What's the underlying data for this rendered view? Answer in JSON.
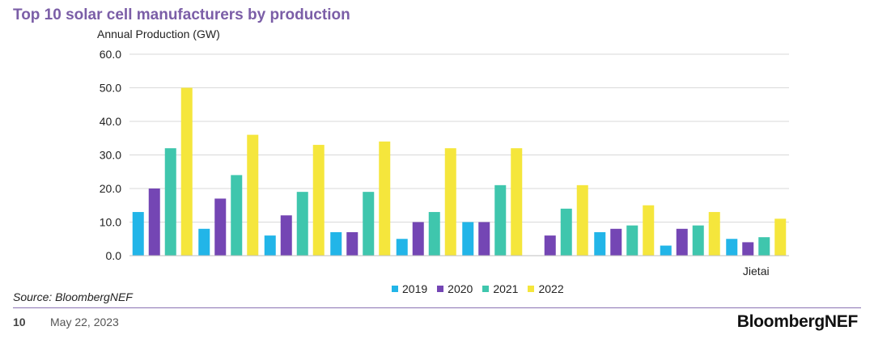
{
  "title": "Top 10 solar cell manufacturers by production",
  "footer": {
    "source": "Source: BloombergNEF",
    "page_number": "10",
    "date": "May 22, 2023",
    "brand": "BloombergNEF"
  },
  "colors": {
    "title": "#7b5ea7",
    "s2019": "#22b5e8",
    "s2020": "#7446b4",
    "s2021": "#3fc6ad",
    "s2022": "#f5e63c",
    "grid": "#d9d9d9"
  },
  "chart_data": {
    "type": "bar",
    "title": "Top 10 solar cell manufacturers by production",
    "ylabel": "Annual Production (GW)",
    "xlabel": "",
    "ylim": [
      0,
      60
    ],
    "yticks": [
      "0.0",
      "10.0",
      "20.0",
      "30.0",
      "40.0",
      "50.0",
      "60.0"
    ],
    "grid": true,
    "legend_position": "bottom",
    "categories": [
      "",
      "",
      "",
      "",
      "",
      "",
      "",
      "",
      "",
      "Jietai"
    ],
    "series": [
      {
        "name": "2019",
        "color": "#22b5e8",
        "values": [
          13,
          8,
          6,
          7,
          5,
          10,
          0,
          7,
          3,
          5
        ]
      },
      {
        "name": "2020",
        "color": "#7446b4",
        "values": [
          20,
          17,
          12,
          7,
          10,
          10,
          6,
          8,
          8,
          4
        ]
      },
      {
        "name": "2021",
        "color": "#3fc6ad",
        "values": [
          32,
          24,
          19,
          19,
          13,
          21,
          14,
          9,
          9,
          5.5
        ]
      },
      {
        "name": "2022",
        "color": "#f5e63c",
        "values": [
          50,
          36,
          33,
          34,
          32,
          32,
          21,
          15,
          13,
          11
        ]
      }
    ]
  }
}
